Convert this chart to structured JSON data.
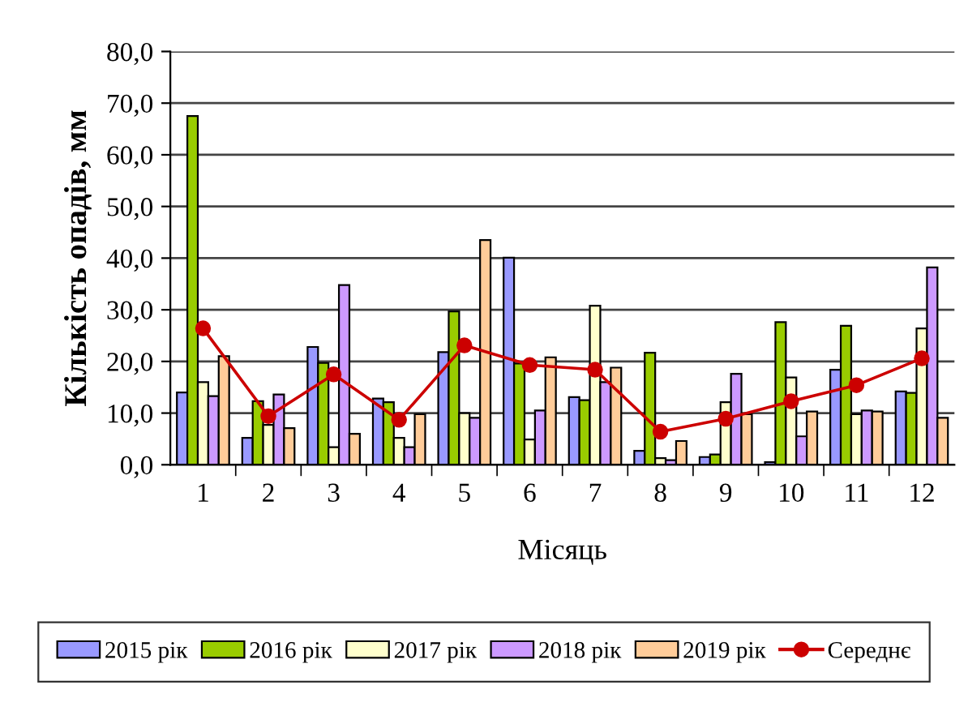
{
  "chart_data": {
    "type": "bar",
    "xlabel": "Місяць",
    "ylabel": "Кількість опадів, мм",
    "categories": [
      "1",
      "2",
      "3",
      "4",
      "5",
      "6",
      "7",
      "8",
      "9",
      "10",
      "11",
      "12"
    ],
    "series": [
      {
        "name": "2015 рік",
        "color": "#9999ff",
        "values": [
          14.0,
          5.2,
          22.8,
          12.8,
          21.8,
          40.1,
          13.1,
          2.7,
          1.5,
          0.5,
          18.4,
          14.2
        ]
      },
      {
        "name": "2016 рік",
        "color": "#99cc00",
        "values": [
          67.5,
          12.3,
          19.7,
          12.1,
          29.7,
          19.6,
          12.5,
          21.7,
          2.0,
          27.6,
          26.9,
          13.9
        ]
      },
      {
        "name": "2017 рік",
        "color": "#ffffcc",
        "values": [
          16.0,
          7.7,
          3.4,
          5.2,
          10.0,
          4.9,
          30.8,
          1.3,
          12.1,
          16.9,
          9.8,
          26.4
        ]
      },
      {
        "name": "2018 рік",
        "color": "#cc99ff",
        "values": [
          13.3,
          13.6,
          34.8,
          3.4,
          9.1,
          10.5,
          16.0,
          0.9,
          17.6,
          5.5,
          10.5,
          38.2
        ]
      },
      {
        "name": "2019 рік",
        "color": "#ffcc99",
        "values": [
          21.0,
          7.1,
          6.0,
          9.8,
          43.5,
          20.8,
          18.8,
          4.6,
          9.8,
          10.3,
          10.3,
          9.1
        ]
      },
      {
        "name": "Середнє",
        "type": "line",
        "color": "#cc0000",
        "marker": "circle",
        "values": [
          26.4,
          9.4,
          17.5,
          8.7,
          23.1,
          19.3,
          18.4,
          6.4,
          8.9,
          12.3,
          15.4,
          20.6
        ]
      }
    ],
    "ylim": [
      0,
      80
    ],
    "yticks": [
      {
        "value": 0,
        "label": "0,0"
      },
      {
        "value": 10,
        "label": "10,0"
      },
      {
        "value": 20,
        "label": "20,0"
      },
      {
        "value": 30,
        "label": "30,0"
      },
      {
        "value": 40,
        "label": "40,0"
      },
      {
        "value": 50,
        "label": "50,0"
      },
      {
        "value": 60,
        "label": "60,0"
      },
      {
        "value": 70,
        "label": "70,0"
      },
      {
        "value": 80,
        "label": "80,0"
      }
    ],
    "grid": "y",
    "legend": "bottom"
  }
}
